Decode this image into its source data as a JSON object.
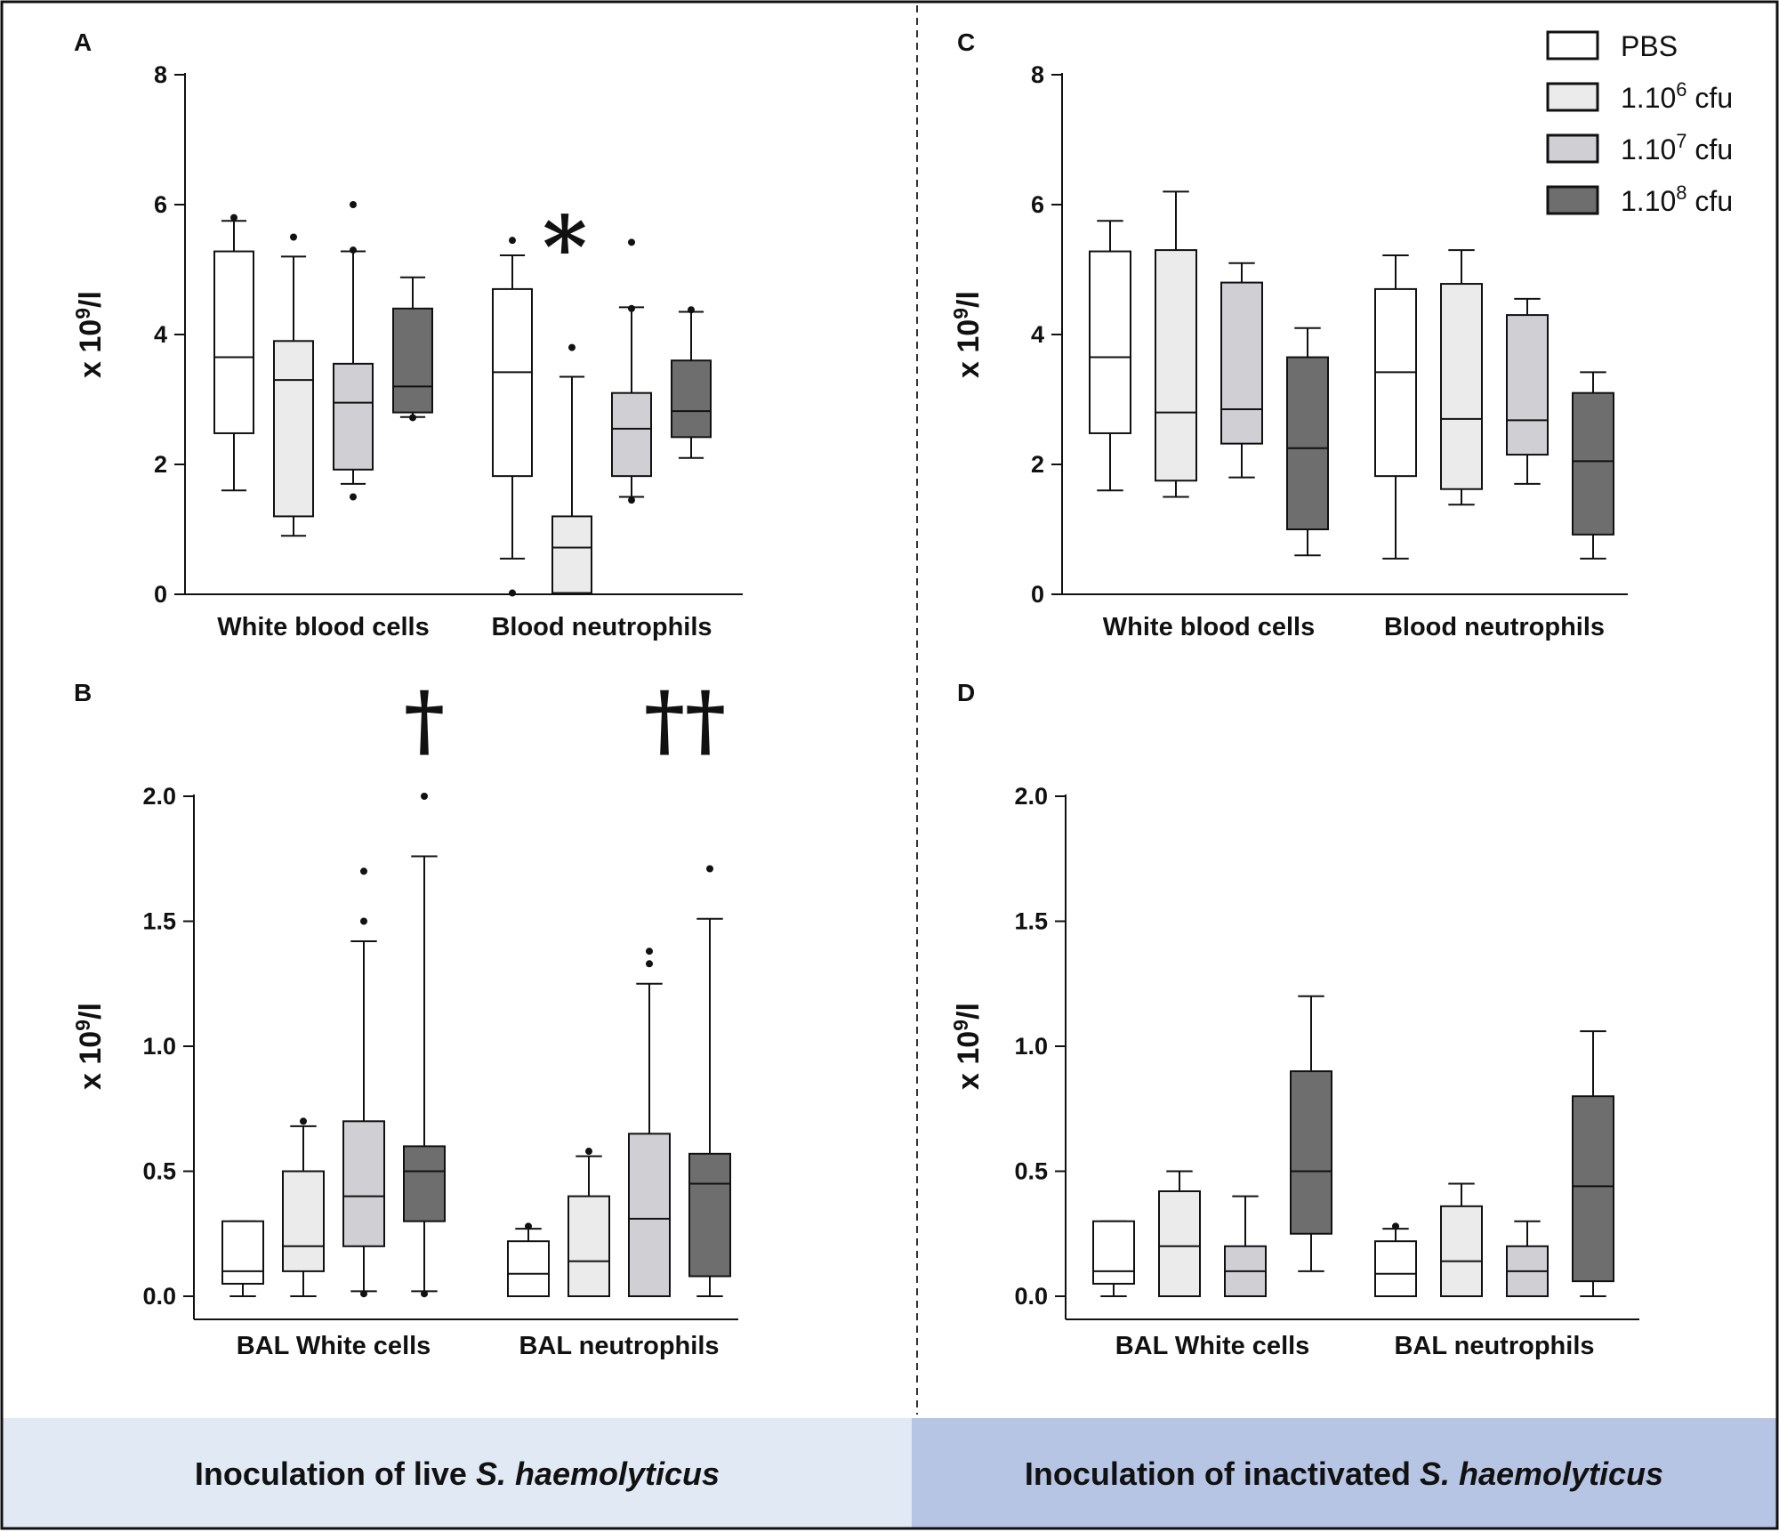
{
  "chart_data": [
    {
      "panel": "A",
      "type": "box",
      "ylabel": "x 10^9/l",
      "ylim": [
        0,
        8
      ],
      "yticks": [
        "0",
        "2",
        "4",
        "6",
        "8"
      ],
      "groups": [
        {
          "label": "White blood cells",
          "boxes": [
            {
              "series": "PBS",
              "whislo": 1.6,
              "q1": 2.48,
              "med": 3.65,
              "q3": 5.28,
              "whishi": 5.75,
              "fliers": [
                5.8
              ]
            },
            {
              "series": "1.10^6 cfu",
              "whislo": 0.9,
              "q1": 1.2,
              "med": 3.3,
              "q3": 3.9,
              "whishi": 5.2,
              "fliers": [
                5.5
              ]
            },
            {
              "series": "1.10^7 cfu",
              "whislo": 1.7,
              "q1": 1.92,
              "med": 2.95,
              "q3": 3.55,
              "whishi": 5.28,
              "fliers": [
                1.5,
                5.3,
                6.0
              ]
            },
            {
              "series": "1.10^8 cfu",
              "whislo": 2.73,
              "q1": 2.8,
              "med": 3.2,
              "q3": 4.4,
              "whishi": 4.88,
              "fliers": [
                2.72
              ]
            }
          ]
        },
        {
          "label": "Blood neutrophils",
          "boxes": [
            {
              "series": "PBS",
              "whislo": 0.55,
              "q1": 1.82,
              "med": 3.42,
              "q3": 4.7,
              "whishi": 5.22,
              "fliers": [
                0.02,
                5.45
              ]
            },
            {
              "series": "1.10^6 cfu",
              "whislo": 0.02,
              "q1": 0.02,
              "med": 0.72,
              "q3": 1.2,
              "whishi": 3.35,
              "fliers": [
                3.8
              ]
            },
            {
              "series": "1.10^7 cfu",
              "whislo": 1.5,
              "q1": 1.82,
              "med": 2.55,
              "q3": 3.1,
              "whishi": 4.42,
              "fliers": [
                1.45,
                4.4,
                5.42
              ]
            },
            {
              "series": "1.10^8 cfu",
              "whislo": 2.1,
              "q1": 2.42,
              "med": 2.82,
              "q3": 3.6,
              "whishi": 4.35,
              "fliers": [
                4.38
              ]
            }
          ]
        }
      ],
      "annotations": [
        {
          "text": "*",
          "group": 1,
          "box": 1
        }
      ]
    },
    {
      "panel": "B",
      "type": "box",
      "ylabel": "x 10^9/l",
      "ylim": [
        0,
        2.0
      ],
      "yticks": [
        "0.0",
        "0.5",
        "1.0",
        "1.5",
        "2.0"
      ],
      "groups": [
        {
          "label": "BAL White cells",
          "boxes": [
            {
              "series": "PBS",
              "whislo": 0.0,
              "q1": 0.05,
              "med": 0.1,
              "q3": 0.3,
              "whishi": 0.3,
              "fliers": []
            },
            {
              "series": "1.10^6 cfu",
              "whislo": 0.0,
              "q1": 0.1,
              "med": 0.2,
              "q3": 0.5,
              "whishi": 0.68,
              "fliers": [
                0.7
              ]
            },
            {
              "series": "1.10^7 cfu",
              "whislo": 0.02,
              "q1": 0.2,
              "med": 0.4,
              "q3": 0.7,
              "whishi": 1.42,
              "fliers": [
                0.01,
                1.5,
                1.7
              ]
            },
            {
              "series": "1.10^8 cfu",
              "whislo": 0.02,
              "q1": 0.3,
              "med": 0.5,
              "q3": 0.6,
              "whishi": 1.76,
              "fliers": [
                0.01,
                2.0
              ]
            }
          ]
        },
        {
          "label": "BAL neutrophils",
          "boxes": [
            {
              "series": "PBS",
              "whislo": 0.0,
              "q1": 0.0,
              "med": 0.09,
              "q3": 0.22,
              "whishi": 0.27,
              "fliers": [
                0.28
              ]
            },
            {
              "series": "1.10^6 cfu",
              "whislo": 0.0,
              "q1": 0.0,
              "med": 0.14,
              "q3": 0.4,
              "whishi": 0.56,
              "fliers": [
                0.58
              ]
            },
            {
              "series": "1.10^7 cfu",
              "whislo": 0.0,
              "q1": 0.0,
              "med": 0.31,
              "q3": 0.65,
              "whishi": 1.25,
              "fliers": [
                1.33,
                1.38
              ]
            },
            {
              "series": "1.10^8 cfu",
              "whislo": 0.0,
              "q1": 0.08,
              "med": 0.45,
              "q3": 0.57,
              "whishi": 1.51,
              "fliers": [
                1.71
              ]
            }
          ]
        }
      ],
      "annotations": [
        {
          "text": "†",
          "group": 0,
          "box": 3
        },
        {
          "text": "††",
          "group": 1,
          "box": 3
        }
      ]
    },
    {
      "panel": "C",
      "type": "box",
      "ylabel": "x 10^9/l",
      "ylim": [
        0,
        8
      ],
      "yticks": [
        "0",
        "2",
        "4",
        "6",
        "8"
      ],
      "groups": [
        {
          "label": "White blood cells",
          "boxes": [
            {
              "series": "PBS",
              "whislo": 1.6,
              "q1": 2.48,
              "med": 3.65,
              "q3": 5.28,
              "whishi": 5.75,
              "fliers": []
            },
            {
              "series": "1.10^6 cfu",
              "whislo": 1.5,
              "q1": 1.75,
              "med": 2.8,
              "q3": 5.3,
              "whishi": 6.2,
              "fliers": []
            },
            {
              "series": "1.10^7 cfu",
              "whislo": 1.8,
              "q1": 2.32,
              "med": 2.85,
              "q3": 4.8,
              "whishi": 5.1,
              "fliers": []
            },
            {
              "series": "1.10^8 cfu",
              "whislo": 0.6,
              "q1": 1.0,
              "med": 2.25,
              "q3": 3.65,
              "whishi": 4.1,
              "fliers": []
            }
          ]
        },
        {
          "label": "Blood neutrophils",
          "boxes": [
            {
              "series": "PBS",
              "whislo": 0.55,
              "q1": 1.82,
              "med": 3.42,
              "q3": 4.7,
              "whishi": 5.22,
              "fliers": []
            },
            {
              "series": "1.10^6 cfu",
              "whislo": 1.38,
              "q1": 1.62,
              "med": 2.7,
              "q3": 4.78,
              "whishi": 5.3,
              "fliers": []
            },
            {
              "series": "1.10^7 cfu",
              "whislo": 1.7,
              "q1": 2.15,
              "med": 2.68,
              "q3": 4.3,
              "whishi": 4.55,
              "fliers": []
            },
            {
              "series": "1.10^8 cfu",
              "whislo": 0.55,
              "q1": 0.92,
              "med": 2.05,
              "q3": 3.1,
              "whishi": 3.42,
              "fliers": []
            }
          ]
        }
      ],
      "annotations": []
    },
    {
      "panel": "D",
      "type": "box",
      "ylabel": "x 10^9/l",
      "ylim": [
        0,
        2.0
      ],
      "yticks": [
        "0.0",
        "0.5",
        "1.0",
        "1.5",
        "2.0"
      ],
      "groups": [
        {
          "label": "BAL White cells",
          "boxes": [
            {
              "series": "PBS",
              "whislo": 0.0,
              "q1": 0.05,
              "med": 0.1,
              "q3": 0.3,
              "whishi": 0.3,
              "fliers": []
            },
            {
              "series": "1.10^6 cfu",
              "whislo": 0.0,
              "q1": 0.0,
              "med": 0.2,
              "q3": 0.42,
              "whishi": 0.5,
              "fliers": []
            },
            {
              "series": "1.10^7 cfu",
              "whislo": 0.0,
              "q1": 0.0,
              "med": 0.1,
              "q3": 0.2,
              "whishi": 0.4,
              "fliers": []
            },
            {
              "series": "1.10^8 cfu",
              "whislo": 0.1,
              "q1": 0.25,
              "med": 0.5,
              "q3": 0.9,
              "whishi": 1.2,
              "fliers": []
            }
          ]
        },
        {
          "label": "BAL neutrophils",
          "boxes": [
            {
              "series": "PBS",
              "whislo": 0.0,
              "q1": 0.0,
              "med": 0.09,
              "q3": 0.22,
              "whishi": 0.27,
              "fliers": [
                0.28
              ]
            },
            {
              "series": "1.10^6 cfu",
              "whislo": 0.0,
              "q1": 0.0,
              "med": 0.14,
              "q3": 0.36,
              "whishi": 0.45,
              "fliers": []
            },
            {
              "series": "1.10^7 cfu",
              "whislo": 0.0,
              "q1": 0.0,
              "med": 0.1,
              "q3": 0.2,
              "whishi": 0.3,
              "fliers": []
            },
            {
              "series": "1.10^8 cfu",
              "whislo": 0.0,
              "q1": 0.06,
              "med": 0.44,
              "q3": 0.8,
              "whishi": 1.06,
              "fliers": []
            }
          ]
        }
      ],
      "annotations": []
    }
  ],
  "legend": {
    "entries": [
      {
        "base": "PBS",
        "sup": "",
        "suffix": "",
        "color": "#ffffff"
      },
      {
        "base": "1.10",
        "sup": "6",
        "suffix": " cfu",
        "color": "#ebebeb"
      },
      {
        "base": "1.10",
        "sup": "7",
        "suffix": " cfu",
        "color": "#cfcfd4"
      },
      {
        "base": "1.10",
        "sup": "8",
        "suffix": " cfu",
        "color": "#6e6e6e"
      }
    ]
  },
  "footer": {
    "left": {
      "prefix": "Inoculation of live ",
      "italic": "S. haemolyticus",
      "bg": "#e0e9f4"
    },
    "right": {
      "prefix": "Inoculation of inactivated ",
      "italic": "S. haemolyticus",
      "bg": "#b7c5e4"
    }
  }
}
